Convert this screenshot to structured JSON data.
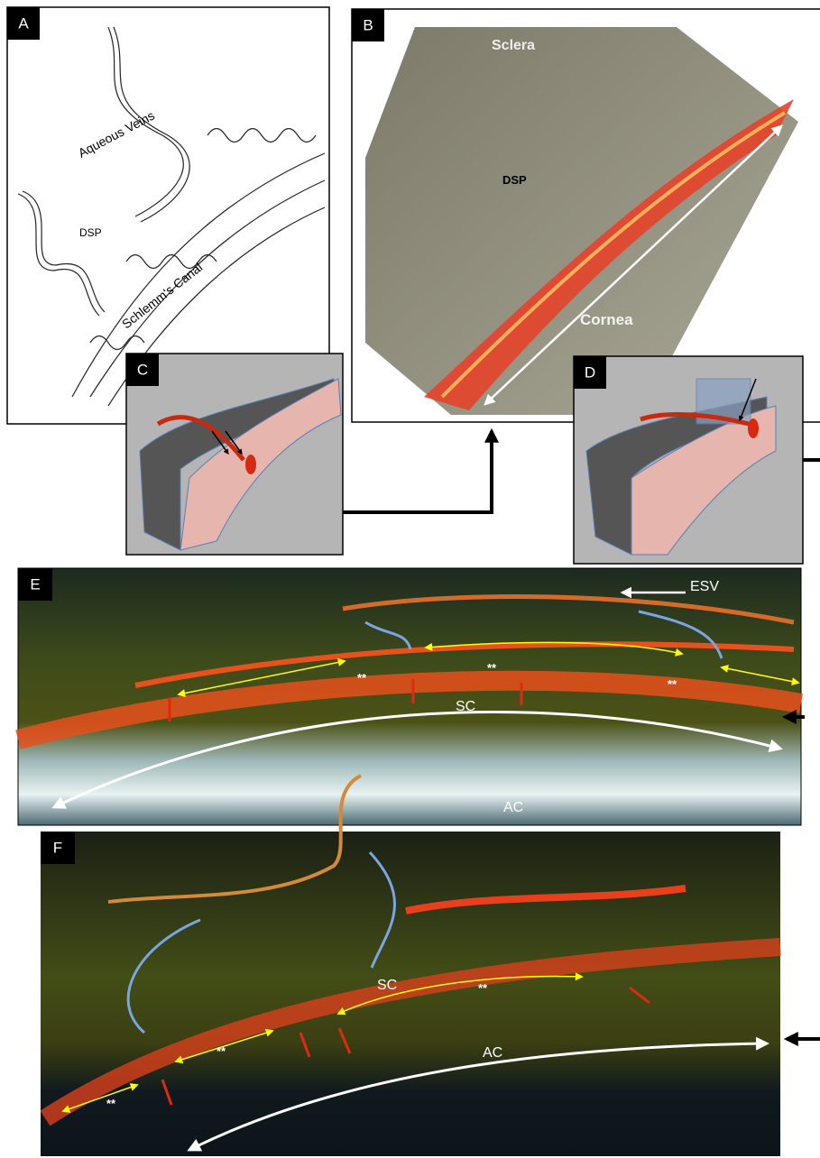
{
  "panels": {
    "A": {
      "label": "A",
      "texts": [
        "Aqueous Veins",
        "DSP",
        "Schlemm's Canal"
      ]
    },
    "B": {
      "label": "B",
      "texts": [
        "Sclera",
        "DSP",
        "Cornea"
      ]
    },
    "C": {
      "label": "C"
    },
    "D": {
      "label": "D"
    },
    "E": {
      "label": "E",
      "esv": "ESV",
      "stars": [
        "**",
        "**",
        "**"
      ],
      "sc": "SC",
      "ac": "AC"
    },
    "F": {
      "label": "F",
      "stars": [
        "**",
        "**",
        "**"
      ],
      "sc": "SC",
      "ac": "AC"
    }
  }
}
